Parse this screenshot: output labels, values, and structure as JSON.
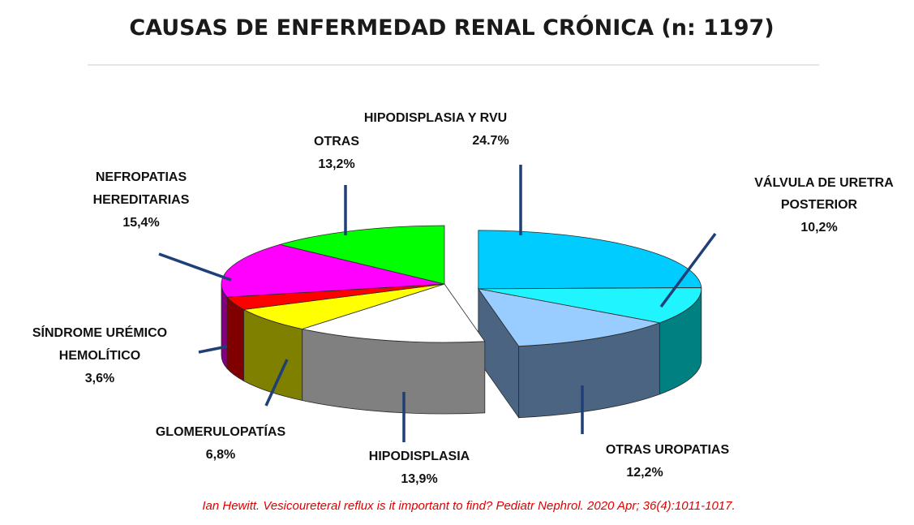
{
  "chart_data": {
    "type": "pie",
    "title": "CAUSAS DE ENFERMEDAD RENAL CRÓNICA (n: 1197)",
    "slices": [
      {
        "name": "HIPODISPLASIA Y RVU",
        "value": 24.7,
        "label": "24.7%",
        "color": "#00CCFF",
        "side": "#007FA8"
      },
      {
        "name": "VÁLVULA DE URETRA POSTERIOR",
        "value": 10.2,
        "label": "10,2%",
        "color": "#1FF4FF",
        "side": "#008080"
      },
      {
        "name": "OTRAS UROPATIAS",
        "value": 12.2,
        "label": "12,2%",
        "color": "#99CCFF",
        "side": "#4A6482"
      },
      {
        "name": "HIPODISPLASIA",
        "value": 13.9,
        "label": "13,9%",
        "color": "#FFFFFF",
        "side": "#808080"
      },
      {
        "name": "GLOMERULOPATÍAS",
        "value": 6.8,
        "label": "6,8%",
        "color": "#FFFF00",
        "side": "#808000"
      },
      {
        "name": "SÍNDROME URÉMICO HEMOLÍTICO",
        "value": 3.6,
        "label": "3,6%",
        "color": "#FF0000",
        "side": "#800000"
      },
      {
        "name": "NEFROPATIAS HEREDITARIAS",
        "value": 15.4,
        "label": "15,4%",
        "color": "#FF00FF",
        "side": "#800080"
      },
      {
        "name": "OTRAS",
        "value": 13.2,
        "label": "13,2%",
        "color": "#00FF00",
        "side": "#008000"
      }
    ],
    "legend": "none"
  },
  "citation": "Ian Hewitt. Vesicoureteral  reflux is it important to find? Pediatr Nephrol. 2020 Apr; 36(4):1011-1017.",
  "colors": {
    "leader_line": "#1F3F77",
    "citation": "#E00000",
    "rule": "#D8DDE2"
  }
}
